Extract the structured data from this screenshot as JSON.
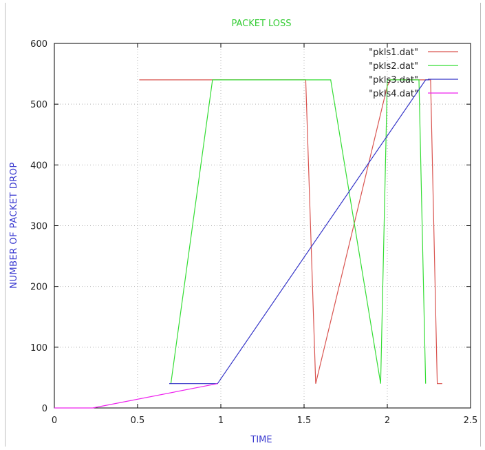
{
  "chart_data": {
    "type": "line",
    "title": "PACKET LOSS",
    "xlabel": "TIME",
    "ylabel": "NUMBER OF PACKET DROP",
    "xlim": [
      0,
      2.5
    ],
    "ylim": [
      0,
      600
    ],
    "xticks": [
      "0",
      "0.5",
      "1",
      "1.5",
      "2",
      "2.5"
    ],
    "yticks": [
      "0",
      "100",
      "200",
      "300",
      "400",
      "500",
      "600"
    ],
    "grid": true,
    "legend_position": "top-right",
    "series": [
      {
        "name": "\"pkls1.dat\"",
        "color": "#d9534f",
        "points": [
          [
            0.51,
            540
          ],
          [
            1.5,
            540
          ],
          [
            1.51,
            540
          ],
          [
            1.57,
            40
          ],
          [
            2.0,
            530
          ],
          [
            2.02,
            540
          ],
          [
            2.26,
            540
          ],
          [
            2.3,
            40
          ],
          [
            2.33,
            40
          ]
        ]
      },
      {
        "name": "\"pkls2.dat\"",
        "color": "#33dd33",
        "points": [
          [
            0.7,
            40
          ],
          [
            0.95,
            540
          ],
          [
            1.66,
            540
          ],
          [
            1.96,
            40
          ],
          [
            2.0,
            540
          ],
          [
            2.19,
            540
          ],
          [
            2.23,
            40
          ]
        ]
      },
      {
        "name": "\"pkls3.dat\"",
        "color": "#3535c8",
        "points": [
          [
            0.69,
            40
          ],
          [
            0.98,
            40
          ],
          [
            2.23,
            540
          ],
          [
            2.25,
            540
          ]
        ]
      },
      {
        "name": "\"pkls4.dat\"",
        "color": "#ee22ee",
        "points": [
          [
            0,
            0
          ],
          [
            0.23,
            0
          ],
          [
            0.98,
            40
          ]
        ]
      }
    ]
  }
}
